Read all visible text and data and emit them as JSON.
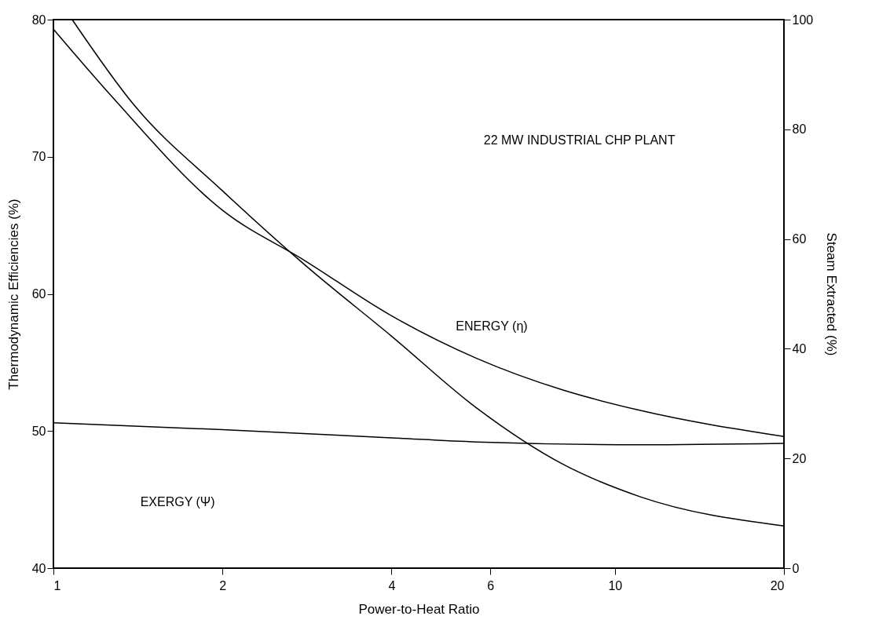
{
  "chart_data": {
    "type": "line",
    "title": "22 MW  INDUSTRIAL  CHP  PLANT",
    "xlabel": "Power-to-Heat  Ratio",
    "ylabel": "Thermodynamic  Efficiencies  (%)",
    "y2label": "Steam  Extracted  (%)",
    "log": "x",
    "marker": "none",
    "line_style": "solid",
    "xlim": [
      1,
      20
    ],
    "xticks": [
      1,
      2,
      4,
      6,
      10,
      20
    ],
    "ylim": [
      40,
      80
    ],
    "yticks": [
      40,
      50,
      60,
      70,
      80
    ],
    "y2lim": [
      0,
      100
    ],
    "y2ticks": [
      0,
      20,
      40,
      60,
      80,
      100
    ],
    "series": [
      {
        "color": "#000000",
        "x": [
          1,
          1.27,
          2,
          2.81,
          4,
          5.67,
          8.06,
          11.1,
          20
        ],
        "values": [
          79.3,
          74.4,
          66.1,
          62.4,
          58.4,
          55.3,
          53.0,
          51.5,
          49.6
        ]
      },
      {
        "color": "#000000",
        "x": [
          1,
          2,
          4,
          5.67,
          11.1,
          20
        ],
        "values": [
          50.6,
          50.1,
          49.5,
          49.2,
          49.0,
          49.1
        ]
      },
      {
        "color": "#000000",
        "axis": "y2",
        "x": [
          1.08,
          1.39,
          2,
          2.81,
          4,
          5.67,
          8.06,
          11.1,
          20
        ],
        "values": [
          100,
          84.5,
          68.8,
          55.2,
          42.3,
          29.2,
          19.0,
          13.0,
          7.7
        ]
      }
    ],
    "annotations": [
      "ENERGY (η)",
      "EXERGY (Ψ)"
    ]
  }
}
